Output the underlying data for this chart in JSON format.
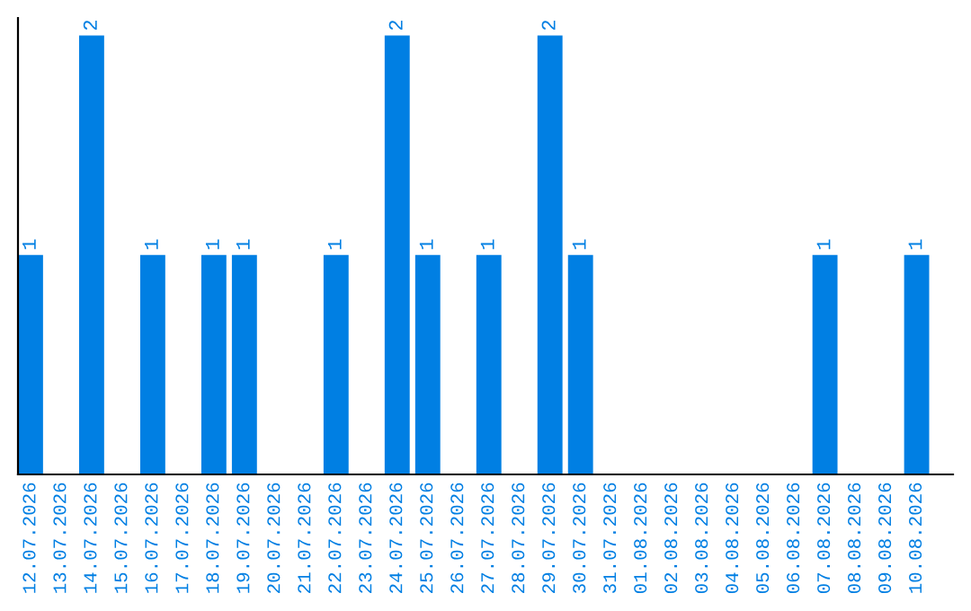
{
  "chart_data": {
    "type": "bar",
    "categories": [
      "12.07.2026",
      "13.07.2026",
      "14.07.2026",
      "15.07.2026",
      "16.07.2026",
      "17.07.2026",
      "18.07.2026",
      "19.07.2026",
      "20.07.2026",
      "21.07.2026",
      "22.07.2026",
      "23.07.2026",
      "24.07.2026",
      "25.07.2026",
      "26.07.2026",
      "27.07.2026",
      "28.07.2026",
      "29.07.2026",
      "30.07.2026",
      "31.07.2026",
      "01.08.2026",
      "02.08.2026",
      "03.08.2026",
      "04.08.2026",
      "05.08.2026",
      "06.08.2026",
      "07.08.2026",
      "08.08.2026",
      "09.08.2026",
      "10.08.2026"
    ],
    "values": [
      1,
      0,
      2,
      0,
      1,
      0,
      1,
      1,
      0,
      0,
      1,
      0,
      2,
      1,
      0,
      1,
      0,
      2,
      1,
      0,
      0,
      0,
      0,
      0,
      0,
      0,
      1,
      0,
      0,
      1
    ],
    "value_labels": [
      "1",
      null,
      "2",
      null,
      "1",
      null,
      "1",
      "1",
      null,
      null,
      "1",
      null,
      "2",
      "1",
      null,
      "1",
      null,
      "2",
      "1",
      null,
      null,
      null,
      null,
      null,
      null,
      null,
      "1",
      null,
      null,
      "1"
    ],
    "color": "#007fe3",
    "ylim": [
      0,
      2.08
    ],
    "tick_labels": "x",
    "grid": false,
    "legend": false
  }
}
